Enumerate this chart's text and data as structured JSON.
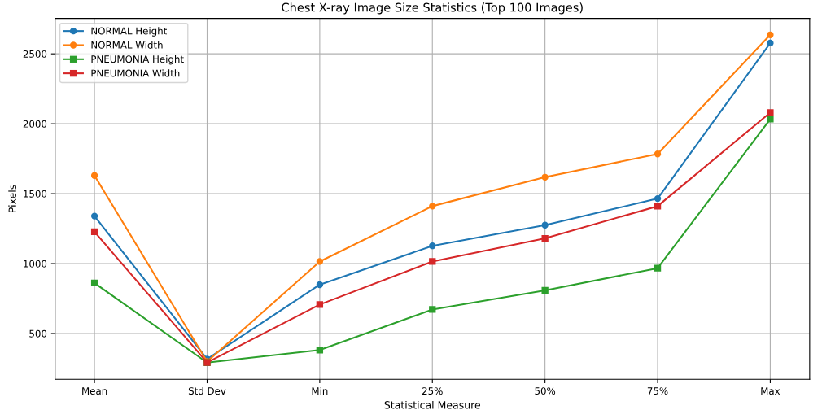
{
  "chart_data": {
    "type": "line",
    "title": "Chest X-ray Image Size Statistics (Top 100 Images)",
    "xlabel": "Statistical Measure",
    "ylabel": "Pixels",
    "categories": [
      "Mean",
      "Std Dev",
      "Min",
      "25%",
      "50%",
      "75%",
      "Max"
    ],
    "series": [
      {
        "name": "NORMAL Height",
        "color": "#1f77b4",
        "marker": "circle",
        "values": [
          1340,
          317,
          849,
          1127,
          1275,
          1465,
          2577
        ]
      },
      {
        "name": "NORMAL Width",
        "color": "#ff7f0e",
        "marker": "circle",
        "values": [
          1630,
          299,
          1015,
          1411,
          1618,
          1784,
          2636
        ]
      },
      {
        "name": "PNEUMONIA Height",
        "color": "#2ca02c",
        "marker": "square",
        "values": [
          861,
          292,
          382,
          672,
          808,
          967,
          2033
        ]
      },
      {
        "name": "PNEUMONIA Width",
        "color": "#d62728",
        "marker": "square",
        "values": [
          1228,
          293,
          707,
          1015,
          1180,
          1411,
          2080
        ]
      }
    ],
    "ylim": [
      173,
      2753
    ],
    "yticks": [
      500,
      1000,
      1500,
      2000,
      2500
    ],
    "grid": true,
    "legend": "top left"
  }
}
